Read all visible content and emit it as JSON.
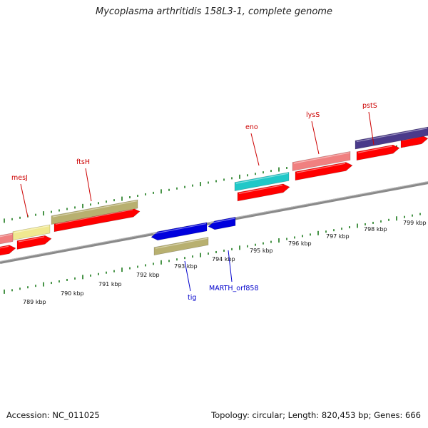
{
  "title": "Mycoplasma arthritidis 158L3-1, complete genome",
  "footer": {
    "accession": "Accession: NC_011025",
    "topology": "Topology: circular; Length: 820,453 bp; Genes: 666"
  },
  "colors": {
    "backbone": "#8a8a8a",
    "tick": "#1a7a1a",
    "cds": "#ff0000",
    "forward_label": "#cc0000",
    "reverse_label": "#0000cc"
  },
  "scale_labels": [
    "789 kbp",
    "790 kbp",
    "791 kbp",
    "792 kbp",
    "793 kbp",
    "794 kbp",
    "795 kbp",
    "796 kbp",
    "797 kbp",
    "798 kbp",
    "799 kbp"
  ],
  "features": {
    "forward": [
      {
        "name": "mesJ",
        "color": "#f0e890"
      },
      {
        "name": "ftsH",
        "color": "#b8b070"
      },
      {
        "name": "eno",
        "color": "#20c8c8"
      },
      {
        "name": "lysS",
        "color": "#f08080"
      },
      {
        "name": "pstS",
        "color": "#4a3a8a"
      }
    ],
    "reverse": [
      {
        "name": "tig",
        "color": "#0000dd"
      },
      {
        "name": "MARTH_orf858",
        "color": "#0000dd"
      }
    ]
  }
}
